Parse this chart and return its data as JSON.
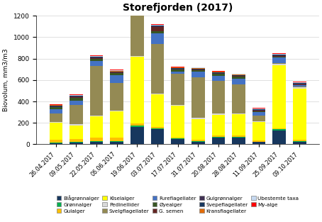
{
  "title": "Storefjorden (2017)",
  "ylabel": "Biovolum, mm3/m3",
  "ylim": [
    0,
    1200
  ],
  "yticks": [
    0,
    200,
    400,
    600,
    800,
    1000,
    1200
  ],
  "dates": [
    "26.04.2017",
    "09.05.2017",
    "22.05.2017",
    "06.06.2017",
    "19.06.2017",
    "03.07.2017",
    "17.07.2017",
    "31.07.2017",
    "20.08.2017",
    "28.08.2017",
    "11.09.2017",
    "25.09.2017",
    "09.10.2017"
  ],
  "series": {
    "Blågrønnalger": [
      10,
      15,
      20,
      20,
      160,
      140,
      50,
      25,
      65,
      65,
      20,
      130,
      25
    ],
    "Grønnalger": [
      5,
      5,
      10,
      10,
      15,
      10,
      5,
      5,
      5,
      5,
      5,
      10,
      5
    ],
    "Gulalger": [
      30,
      30,
      30,
      30,
      20,
      10,
      10,
      10,
      10,
      10,
      10,
      10,
      10
    ],
    "Kiselalger": [
      155,
      125,
      200,
      245,
      620,
      305,
      295,
      195,
      195,
      200,
      170,
      590,
      480
    ],
    "Pedinellider": [
      10,
      10,
      10,
      10,
      10,
      10,
      10,
      10,
      10,
      10,
      10,
      10,
      10
    ],
    "Svelgflagellater": [
      80,
      180,
      460,
      260,
      380,
      460,
      290,
      380,
      310,
      270,
      55,
      10,
      10
    ],
    "Fureflagellater": [
      35,
      40,
      50,
      70,
      50,
      100,
      15,
      50,
      45,
      50,
      30,
      50,
      10
    ],
    "Øyealger": [
      20,
      30,
      20,
      20,
      20,
      20,
      20,
      15,
      15,
      20,
      10,
      10,
      5
    ],
    "G. semen": [
      5,
      5,
      5,
      5,
      5,
      40,
      5,
      5,
      5,
      5,
      5,
      5,
      5
    ],
    "Gulgrønnalger": [
      5,
      5,
      5,
      5,
      5,
      5,
      5,
      5,
      5,
      5,
      5,
      5,
      5
    ],
    "Svepeflagellater": [
      5,
      5,
      5,
      5,
      5,
      5,
      5,
      5,
      5,
      5,
      5,
      5,
      5
    ],
    "Kransflagellater": [
      5,
      5,
      5,
      5,
      5,
      5,
      5,
      5,
      5,
      5,
      5,
      5,
      5
    ],
    "Ubestemte taxa": [
      5,
      5,
      5,
      5,
      5,
      5,
      5,
      5,
      5,
      5,
      5,
      5,
      5
    ],
    "My-alge": [
      5,
      5,
      5,
      5,
      5,
      5,
      5,
      5,
      5,
      5,
      5,
      5,
      5
    ]
  },
  "colors": {
    "Blågrønnalger": "#17375E",
    "Grønnalger": "#00B050",
    "Gulalger": "#FFC000",
    "Kiselalger": "#FFFF00",
    "Pedinellider": "#D9D9D9",
    "Svelgflagellater": "#948A54",
    "Fureflagellater": "#4472C4",
    "Øyealger": "#375623",
    "G. semen": "#632523",
    "Gulgrønnalger": "#403152",
    "Svepeflagellater": "#17375E",
    "Kransflagellater": "#E36C09",
    "Ubestemte taxa": "#C6D9F1",
    "My-alge": "#FF0000"
  },
  "legend_order": [
    "Blågrønnalger",
    "Grønnalger",
    "Gulalger",
    "Kiselalger",
    "Pedinellider",
    "Svelgflagellater",
    "Fureflagellater",
    "Øyealger",
    "G. semen",
    "Gulgrønnalger",
    "Svepeflagellater",
    "Kransflagellater",
    "Ubestemte taxa",
    "My-alge"
  ]
}
